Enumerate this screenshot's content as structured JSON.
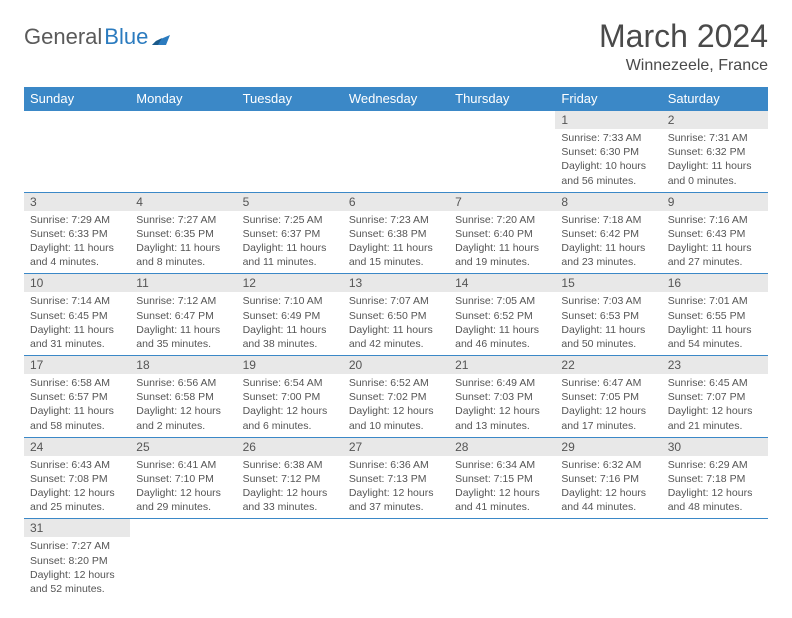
{
  "brand": {
    "part1": "General",
    "part2": "Blue"
  },
  "title": "March 2024",
  "location": "Winnezeele, France",
  "colors": {
    "header_bg": "#3b88c7",
    "header_fg": "#ffffff",
    "daynum_bg": "#e8e8e8",
    "text": "#555555",
    "brand_blue": "#2b7bbf",
    "border": "#3b88c7"
  },
  "day_headers": [
    "Sunday",
    "Monday",
    "Tuesday",
    "Wednesday",
    "Thursday",
    "Friday",
    "Saturday"
  ],
  "weeks": [
    [
      null,
      null,
      null,
      null,
      null,
      {
        "n": "1",
        "sr": "Sunrise: 7:33 AM",
        "ss": "Sunset: 6:30 PM",
        "dl": "Daylight: 10 hours and 56 minutes."
      },
      {
        "n": "2",
        "sr": "Sunrise: 7:31 AM",
        "ss": "Sunset: 6:32 PM",
        "dl": "Daylight: 11 hours and 0 minutes."
      }
    ],
    [
      {
        "n": "3",
        "sr": "Sunrise: 7:29 AM",
        "ss": "Sunset: 6:33 PM",
        "dl": "Daylight: 11 hours and 4 minutes."
      },
      {
        "n": "4",
        "sr": "Sunrise: 7:27 AM",
        "ss": "Sunset: 6:35 PM",
        "dl": "Daylight: 11 hours and 8 minutes."
      },
      {
        "n": "5",
        "sr": "Sunrise: 7:25 AM",
        "ss": "Sunset: 6:37 PM",
        "dl": "Daylight: 11 hours and 11 minutes."
      },
      {
        "n": "6",
        "sr": "Sunrise: 7:23 AM",
        "ss": "Sunset: 6:38 PM",
        "dl": "Daylight: 11 hours and 15 minutes."
      },
      {
        "n": "7",
        "sr": "Sunrise: 7:20 AM",
        "ss": "Sunset: 6:40 PM",
        "dl": "Daylight: 11 hours and 19 minutes."
      },
      {
        "n": "8",
        "sr": "Sunrise: 7:18 AM",
        "ss": "Sunset: 6:42 PM",
        "dl": "Daylight: 11 hours and 23 minutes."
      },
      {
        "n": "9",
        "sr": "Sunrise: 7:16 AM",
        "ss": "Sunset: 6:43 PM",
        "dl": "Daylight: 11 hours and 27 minutes."
      }
    ],
    [
      {
        "n": "10",
        "sr": "Sunrise: 7:14 AM",
        "ss": "Sunset: 6:45 PM",
        "dl": "Daylight: 11 hours and 31 minutes."
      },
      {
        "n": "11",
        "sr": "Sunrise: 7:12 AM",
        "ss": "Sunset: 6:47 PM",
        "dl": "Daylight: 11 hours and 35 minutes."
      },
      {
        "n": "12",
        "sr": "Sunrise: 7:10 AM",
        "ss": "Sunset: 6:49 PM",
        "dl": "Daylight: 11 hours and 38 minutes."
      },
      {
        "n": "13",
        "sr": "Sunrise: 7:07 AM",
        "ss": "Sunset: 6:50 PM",
        "dl": "Daylight: 11 hours and 42 minutes."
      },
      {
        "n": "14",
        "sr": "Sunrise: 7:05 AM",
        "ss": "Sunset: 6:52 PM",
        "dl": "Daylight: 11 hours and 46 minutes."
      },
      {
        "n": "15",
        "sr": "Sunrise: 7:03 AM",
        "ss": "Sunset: 6:53 PM",
        "dl": "Daylight: 11 hours and 50 minutes."
      },
      {
        "n": "16",
        "sr": "Sunrise: 7:01 AM",
        "ss": "Sunset: 6:55 PM",
        "dl": "Daylight: 11 hours and 54 minutes."
      }
    ],
    [
      {
        "n": "17",
        "sr": "Sunrise: 6:58 AM",
        "ss": "Sunset: 6:57 PM",
        "dl": "Daylight: 11 hours and 58 minutes."
      },
      {
        "n": "18",
        "sr": "Sunrise: 6:56 AM",
        "ss": "Sunset: 6:58 PM",
        "dl": "Daylight: 12 hours and 2 minutes."
      },
      {
        "n": "19",
        "sr": "Sunrise: 6:54 AM",
        "ss": "Sunset: 7:00 PM",
        "dl": "Daylight: 12 hours and 6 minutes."
      },
      {
        "n": "20",
        "sr": "Sunrise: 6:52 AM",
        "ss": "Sunset: 7:02 PM",
        "dl": "Daylight: 12 hours and 10 minutes."
      },
      {
        "n": "21",
        "sr": "Sunrise: 6:49 AM",
        "ss": "Sunset: 7:03 PM",
        "dl": "Daylight: 12 hours and 13 minutes."
      },
      {
        "n": "22",
        "sr": "Sunrise: 6:47 AM",
        "ss": "Sunset: 7:05 PM",
        "dl": "Daylight: 12 hours and 17 minutes."
      },
      {
        "n": "23",
        "sr": "Sunrise: 6:45 AM",
        "ss": "Sunset: 7:07 PM",
        "dl": "Daylight: 12 hours and 21 minutes."
      }
    ],
    [
      {
        "n": "24",
        "sr": "Sunrise: 6:43 AM",
        "ss": "Sunset: 7:08 PM",
        "dl": "Daylight: 12 hours and 25 minutes."
      },
      {
        "n": "25",
        "sr": "Sunrise: 6:41 AM",
        "ss": "Sunset: 7:10 PM",
        "dl": "Daylight: 12 hours and 29 minutes."
      },
      {
        "n": "26",
        "sr": "Sunrise: 6:38 AM",
        "ss": "Sunset: 7:12 PM",
        "dl": "Daylight: 12 hours and 33 minutes."
      },
      {
        "n": "27",
        "sr": "Sunrise: 6:36 AM",
        "ss": "Sunset: 7:13 PM",
        "dl": "Daylight: 12 hours and 37 minutes."
      },
      {
        "n": "28",
        "sr": "Sunrise: 6:34 AM",
        "ss": "Sunset: 7:15 PM",
        "dl": "Daylight: 12 hours and 41 minutes."
      },
      {
        "n": "29",
        "sr": "Sunrise: 6:32 AM",
        "ss": "Sunset: 7:16 PM",
        "dl": "Daylight: 12 hours and 44 minutes."
      },
      {
        "n": "30",
        "sr": "Sunrise: 6:29 AM",
        "ss": "Sunset: 7:18 PM",
        "dl": "Daylight: 12 hours and 48 minutes."
      }
    ],
    [
      {
        "n": "31",
        "sr": "Sunrise: 7:27 AM",
        "ss": "Sunset: 8:20 PM",
        "dl": "Daylight: 12 hours and 52 minutes."
      },
      null,
      null,
      null,
      null,
      null,
      null
    ]
  ]
}
